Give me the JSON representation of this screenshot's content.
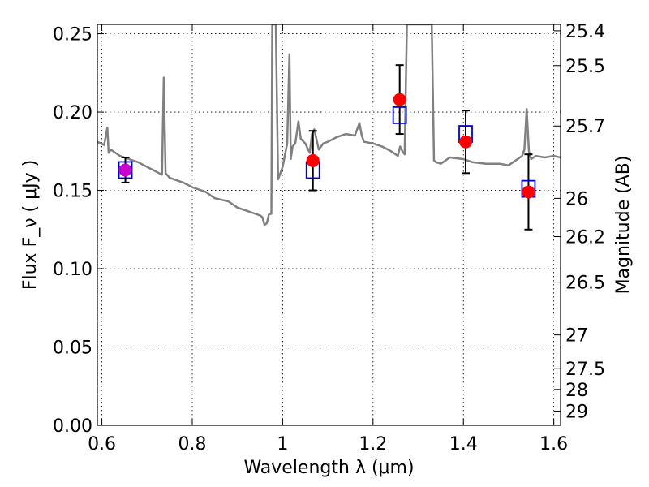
{
  "chart_data": {
    "type": "scatter",
    "title": "",
    "xlabel": "Wavelength  λ (μm)",
    "ylabel": "Flux  F_ν  ( μJy )",
    "y2label": "Magnitude (AB)",
    "xlim": [
      0.59,
      1.615
    ],
    "ylim": [
      0.0,
      0.256
    ],
    "x_ticks": [
      0.6,
      0.8,
      1.0,
      1.2,
      1.4,
      1.6
    ],
    "x_tick_labels": [
      "0.6",
      "0.8",
      "1",
      "1.2",
      "1.4",
      "1.6"
    ],
    "y_ticks": [
      0.0,
      0.05,
      0.1,
      0.15,
      0.2,
      0.25
    ],
    "y_tick_labels": [
      "0.00",
      "0.05",
      "0.10",
      "0.15",
      "0.20",
      "0.25"
    ],
    "y2_ticks": [
      {
        "label": "25.4",
        "flux": 0.2519
      },
      {
        "label": "25.5",
        "flux": 0.2297
      },
      {
        "label": "25.7",
        "flux": 0.1911
      },
      {
        "label": "26",
        "flux": 0.1449
      },
      {
        "label": "26.2",
        "flux": 0.1205
      },
      {
        "label": "26.5",
        "flux": 0.0914
      },
      {
        "label": "27",
        "flux": 0.0577
      },
      {
        "label": "27.5",
        "flux": 0.0364
      },
      {
        "label": "28",
        "flux": 0.0229
      },
      {
        "label": "29",
        "flux": 0.0091
      }
    ],
    "grid": true,
    "legend": "none",
    "colors": {
      "model": "#808080",
      "observed": "#ff0000",
      "model_band": "#0000cc",
      "errorbar": "#000000",
      "first_point": "#cc00cc"
    },
    "series": [
      {
        "kind": "model_spectrum",
        "x": [
          0.59,
          0.605,
          0.612,
          0.615,
          0.62,
          0.64,
          0.66,
          0.68,
          0.7,
          0.72,
          0.733,
          0.737,
          0.741,
          0.75,
          0.78,
          0.8,
          0.83,
          0.85,
          0.88,
          0.9,
          0.92,
          0.94,
          0.95,
          0.955,
          0.96,
          0.965,
          0.97,
          0.975,
          0.977,
          0.985,
          0.99,
          1.0,
          1.01,
          1.015,
          1.018,
          1.022,
          1.028,
          1.035,
          1.04,
          1.05,
          1.06,
          1.065,
          1.07,
          1.08,
          1.09,
          1.1,
          1.12,
          1.14,
          1.16,
          1.17,
          1.175,
          1.18,
          1.2,
          1.22,
          1.24,
          1.255,
          1.26,
          1.265,
          1.27,
          1.275,
          1.28,
          1.29,
          1.295,
          1.33,
          1.335,
          1.34,
          1.35,
          1.37,
          1.4,
          1.42,
          1.45,
          1.48,
          1.5,
          1.52,
          1.53,
          1.535,
          1.54,
          1.545,
          1.55,
          1.56,
          1.58,
          1.6,
          1.615
        ],
        "y": [
          0.181,
          0.179,
          0.19,
          0.174,
          0.176,
          0.172,
          0.17,
          0.168,
          0.165,
          0.162,
          0.16,
          0.222,
          0.161,
          0.158,
          0.155,
          0.152,
          0.149,
          0.145,
          0.143,
          0.139,
          0.137,
          0.135,
          0.134,
          0.133,
          0.128,
          0.129,
          0.135,
          0.135,
          0.256,
          0.256,
          0.157,
          0.165,
          0.18,
          0.237,
          0.17,
          0.178,
          0.18,
          0.194,
          0.183,
          0.18,
          0.174,
          0.186,
          0.189,
          0.176,
          0.18,
          0.181,
          0.184,
          0.186,
          0.185,
          0.193,
          0.185,
          0.181,
          0.18,
          0.178,
          0.175,
          0.172,
          0.178,
          0.175,
          0.173,
          0.256,
          0.256,
          0.256,
          0.256,
          0.256,
          0.169,
          0.168,
          0.167,
          0.171,
          0.17,
          0.168,
          0.167,
          0.167,
          0.166,
          0.17,
          0.172,
          0.176,
          0.202,
          0.175,
          0.17,
          0.172,
          0.171,
          0.172,
          0.171
        ]
      },
      {
        "kind": "model_band_flux",
        "x": [
          0.652,
          1.067,
          1.259,
          1.405,
          1.544
        ],
        "y": [
          0.163,
          0.163,
          0.198,
          0.186,
          0.151
        ]
      },
      {
        "kind": "observed_flux",
        "x": [
          0.652,
          1.067,
          1.259,
          1.405,
          1.544
        ],
        "y": [
          0.163,
          0.169,
          0.208,
          0.181,
          0.149
        ],
        "yerr": [
          0.008,
          0.019,
          0.022,
          0.02,
          0.024
        ]
      }
    ]
  }
}
